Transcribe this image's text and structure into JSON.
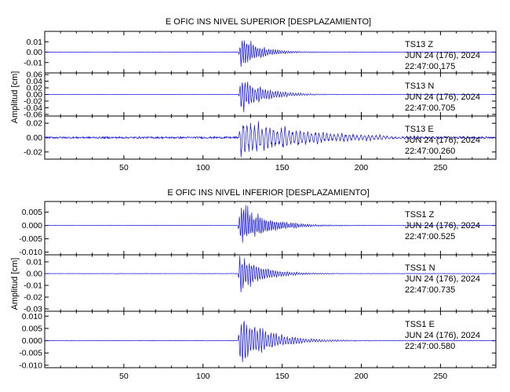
{
  "chart_data": [
    {
      "type": "line",
      "title": "E OFIC INS NIVEL SUPERIOR [DESPLAZAMIENTO]",
      "ylabel": "Amplitud [cm]",
      "x_ticks": [
        "50",
        "100",
        "150",
        "200",
        "250"
      ],
      "xlim": [
        0,
        285
      ],
      "panels": [
        {
          "y_ticks": [
            "0.01",
            "0.00",
            "-0.01"
          ],
          "ylim": [
            -0.02,
            0.02
          ],
          "annotation": [
            "TS13   Z",
            "JUN 24 (176), 2024",
            "22:47:00.175"
          ],
          "onset": 122.5,
          "peak": 0.018,
          "decay": 12,
          "noise": 0.00015,
          "period": 1.4
        },
        {
          "y_ticks": [
            "0.06",
            "0.04",
            "0.02",
            "0.00",
            "-0.02",
            "-0.04",
            "-0.06"
          ],
          "ylim": [
            -0.065,
            0.065
          ],
          "annotation": [
            "TS13   N",
            "JUN 24 (176), 2024",
            "22:47:00.705"
          ],
          "onset": 122.5,
          "peak": 0.06,
          "decay": 14,
          "noise": 0.0004,
          "period": 1.6
        },
        {
          "y_ticks": [
            "0.02",
            "0.00",
            "-0.02"
          ],
          "ylim": [
            -0.03,
            0.03
          ],
          "annotation": [
            "TS13   E",
            "JUN 24 (176), 2024",
            "22:47:00.260"
          ],
          "onset": 122.5,
          "peak": 0.028,
          "decay": 40,
          "noise": 0.0012,
          "period": 2.4
        }
      ]
    },
    {
      "type": "line",
      "title": "E OFIC INS NIVEL INFERIOR [DESPLAZAMIENTO]",
      "ylabel": "Amplitud [cm]",
      "x_ticks": [
        "50",
        "100",
        "150",
        "200",
        "250"
      ],
      "xlim": [
        0,
        285
      ],
      "panels": [
        {
          "y_ticks": [
            "0.005",
            "0.000",
            "-0.005",
            "-0.010"
          ],
          "ylim": [
            -0.011,
            0.009
          ],
          "annotation": [
            "TSS1   Z",
            "JUN 24 (176), 2024",
            "22:47:00.525"
          ],
          "onset": 122,
          "peak": 0.009,
          "decay": 16,
          "noise": 5e-05,
          "period": 1.3
        },
        {
          "y_ticks": [
            "0.01",
            "0.00",
            "-0.01",
            "-0.02",
            "-0.03"
          ],
          "ylim": [
            -0.032,
            0.016
          ],
          "annotation": [
            "TSS1   N",
            "JUN 24 (176), 2024",
            "22:47:00.735"
          ],
          "onset": 122,
          "peak": 0.018,
          "decay": 14,
          "noise": 0.0001,
          "period": 1.5
        },
        {
          "y_ticks": [
            "0.010",
            "0.005",
            "0.000",
            "-0.005",
            "-0.010"
          ],
          "ylim": [
            -0.011,
            0.012
          ],
          "annotation": [
            "TSS1   E",
            "JUN 24 (176), 2024",
            "22:47:00.580"
          ],
          "onset": 122,
          "peak": 0.011,
          "decay": 18,
          "noise": 8e-05,
          "period": 1.7
        }
      ]
    }
  ]
}
